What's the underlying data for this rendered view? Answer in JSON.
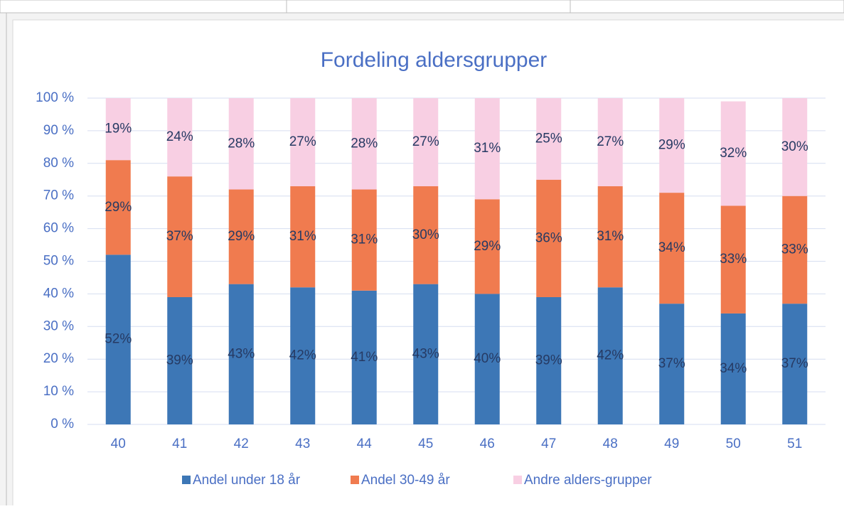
{
  "chart_data": {
    "type": "stacked_bar",
    "title": "Fordeling aldersgrupper",
    "categories": [
      "40",
      "41",
      "42",
      "43",
      "44",
      "45",
      "46",
      "47",
      "48",
      "49",
      "50",
      "51"
    ],
    "series": [
      {
        "name": "Andel under 18 år",
        "color": "#3d77b6",
        "values": [
          52,
          39,
          43,
          42,
          41,
          43,
          40,
          39,
          42,
          37,
          34,
          37
        ],
        "value_labels": [
          "52%",
          "39%",
          "43%",
          "42%",
          "41%",
          "43%",
          "40%",
          "39%",
          "42%",
          "37%",
          "34%",
          "37%"
        ]
      },
      {
        "name": "Andel 30-49 år",
        "color": "#f07b4f",
        "values": [
          29,
          37,
          29,
          31,
          31,
          30,
          29,
          36,
          31,
          34,
          33,
          33
        ],
        "value_labels": [
          "29%",
          "37%",
          "29%",
          "31%",
          "31%",
          "30%",
          "29%",
          "36%",
          "31%",
          "34%",
          "33%",
          "33%"
        ]
      },
      {
        "name": "Andre alders-grupper",
        "color": "#f8cfe3",
        "values": [
          19,
          24,
          28,
          27,
          28,
          27,
          31,
          25,
          27,
          29,
          32,
          30
        ],
        "value_labels": [
          "19%",
          "24%",
          "28%",
          "27%",
          "28%",
          "27%",
          "31%",
          "25%",
          "27%",
          "29%",
          "32%",
          "30%"
        ]
      }
    ],
    "ylim": [
      0,
      100
    ],
    "yticks": [
      {
        "value": 0,
        "label": "0 %"
      },
      {
        "value": 10,
        "label": "10 %"
      },
      {
        "value": 20,
        "label": "20 %"
      },
      {
        "value": 30,
        "label": "30 %"
      },
      {
        "value": 40,
        "label": "40 %"
      },
      {
        "value": 50,
        "label": "50 %"
      },
      {
        "value": 60,
        "label": "60 %"
      },
      {
        "value": 70,
        "label": "70 %"
      },
      {
        "value": 80,
        "label": "80 %"
      },
      {
        "value": 90,
        "label": "90 %"
      },
      {
        "value": 100,
        "label": "100 %"
      }
    ],
    "grid": true,
    "legend": "bottom"
  }
}
